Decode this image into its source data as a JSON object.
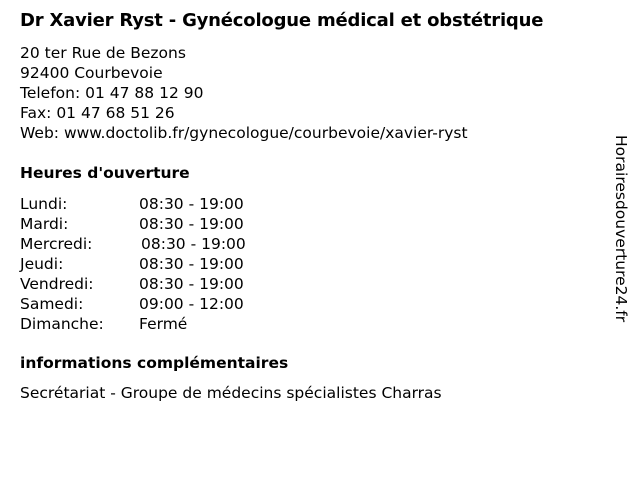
{
  "title": "Dr Xavier Ryst - Gynécologue médical et obstétrique",
  "address": {
    "street": "20 ter Rue de Bezons",
    "city": "92400 Courbevoie",
    "phone": "Telefon: 01 47 88 12 90",
    "fax": "Fax: 01 47 68 51 26",
    "web": "Web: www.doctolib.fr/gynecologue/courbevoie/xavier-ryst"
  },
  "hours_heading": "Heures d'ouverture",
  "hours": [
    {
      "day": "Lundi:",
      "time": "08:30 - 19:00"
    },
    {
      "day": "Mardi:",
      "time": "08:30 - 19:00"
    },
    {
      "day": "Mercredi:",
      "time": "08:30 - 19:00"
    },
    {
      "day": "Jeudi:",
      "time": "08:30 - 19:00"
    },
    {
      "day": "Vendredi:",
      "time": "08:30 - 19:00"
    },
    {
      "day": "Samedi:",
      "time": "09:00 - 12:00"
    },
    {
      "day": "Dimanche:",
      "time": "Fermé"
    }
  ],
  "info_heading": "informations complémentaires",
  "info_text": "Secrétariat - Groupe de médecins spécialistes Charras",
  "side_brand": "Horairesdouverture24.fr"
}
